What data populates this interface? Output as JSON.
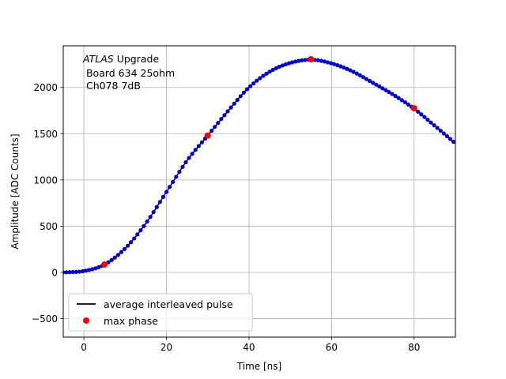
{
  "chart_data": {
    "type": "line",
    "xlabel": "Time [ns]",
    "ylabel": "Amplitude [ADC Counts]",
    "xlim": [
      -5,
      90
    ],
    "ylim": [
      -700,
      2450
    ],
    "xticks": [
      0,
      20,
      40,
      60,
      80
    ],
    "yticks": [
      -500,
      0,
      500,
      1000,
      1500,
      2000
    ],
    "grid": true,
    "annotation": {
      "italic": "ATLAS",
      "rest": " Upgrade",
      "line2": " Board 634 25ohm",
      "line3": " Ch078 7dB"
    },
    "legend": {
      "placement": "lower-left",
      "entries": [
        {
          "label": "average interleaved pulse",
          "color": "#000000",
          "marker": "line"
        },
        {
          "label": "max phase",
          "color": "#ff0000",
          "marker": "dot"
        }
      ]
    },
    "series": [
      {
        "label": "average interleaved pulse",
        "color": "#000000",
        "marker_color": "#0000cc",
        "x": [
          -5,
          0,
          5,
          10,
          15,
          20,
          25,
          30,
          35,
          40,
          45,
          50,
          55,
          60,
          65,
          70,
          75,
          80,
          85,
          90
        ],
        "y": [
          0,
          15,
          85,
          260,
          530,
          870,
          1210,
          1480,
          1750,
          2000,
          2170,
          2265,
          2300,
          2260,
          2175,
          2050,
          1920,
          1770,
          1585,
          1395
        ]
      },
      {
        "label": "max phase",
        "color": "#ff0000",
        "x": [
          5,
          30,
          55,
          80
        ],
        "y": [
          85,
          1480,
          2305,
          1775
        ]
      }
    ]
  }
}
